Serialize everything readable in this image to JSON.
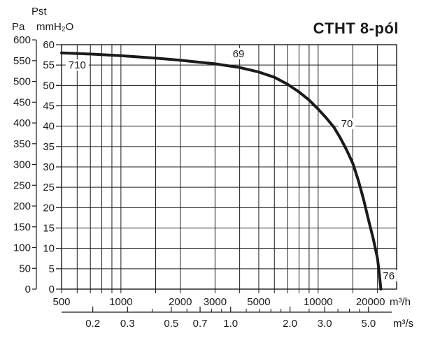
{
  "header": {
    "pst_label": "Pst",
    "pa_unit": "Pa",
    "mmh2o_unit": "mmH₂O",
    "title": "CTHT 8-pól"
  },
  "chart_data": {
    "type": "line",
    "title": "CTHT 8-pól",
    "x_axis": {
      "scale": "log",
      "unit": "m³/h",
      "min": 500,
      "max": 25000,
      "labeled_ticks": [
        500,
        1000,
        2000,
        3000,
        5000,
        10000,
        20000
      ],
      "gridlines": [
        500,
        600,
        700,
        800,
        900,
        1000,
        1500,
        2000,
        3000,
        4000,
        5000,
        6000,
        7000,
        8000,
        9000,
        10000,
        15000,
        20000
      ]
    },
    "x_axis_secondary": {
      "unit": "m³/s",
      "factor_to_primary": 3600,
      "labeled_ticks": [
        0.2,
        0.3,
        0.5,
        0.7,
        1.0,
        2.0,
        3.0,
        5.0
      ],
      "minor_ticks": [
        0.4,
        0.6,
        0.8,
        0.9,
        1.2,
        1.4,
        1.6,
        1.8,
        2.5,
        3.5,
        4.0,
        4.5
      ]
    },
    "y_axis_left": {
      "unit": "Pa",
      "min": 0,
      "max": 600,
      "tick_step": 50,
      "pa_per_mmh2o": 9.80665
    },
    "y_axis_inner": {
      "unit": "mmH₂O",
      "label_above": "Pst",
      "min": 0,
      "max": 60,
      "tick_step": 5,
      "grid": true
    },
    "legend_position": "none",
    "series": [
      {
        "name": "CTHT 8-pól pressure curve",
        "points": [
          [
            500,
            58.0
          ],
          [
            700,
            57.7
          ],
          [
            1000,
            57.3
          ],
          [
            1500,
            56.7
          ],
          [
            2000,
            56.2
          ],
          [
            2500,
            55.7
          ],
          [
            3000,
            55.3
          ],
          [
            4000,
            54.4
          ],
          [
            5000,
            53.3
          ],
          [
            6000,
            52.0
          ],
          [
            7000,
            50.3
          ],
          [
            8000,
            48.4
          ],
          [
            9000,
            46.4
          ],
          [
            10000,
            44.2
          ],
          [
            11000,
            42.0
          ],
          [
            12000,
            39.8
          ],
          [
            13000,
            37.0
          ],
          [
            14000,
            34.0
          ],
          [
            15000,
            30.8
          ],
          [
            16000,
            26.6
          ],
          [
            17000,
            22.0
          ],
          [
            18000,
            17.0
          ],
          [
            19000,
            12.5
          ],
          [
            19500,
            10.0
          ],
          [
            20000,
            7.5
          ],
          [
            20400,
            4.0
          ],
          [
            20800,
            0.0
          ]
        ]
      }
    ],
    "curve_labels": [
      {
        "text": "710",
        "q": 600,
        "v": 55.0
      },
      {
        "text": "69",
        "q": 3950,
        "v": 57.8
      },
      {
        "text": "70",
        "q": 14000,
        "v": 40.6
      },
      {
        "text": "76",
        "q": 22800,
        "v": 3.3
      }
    ]
  }
}
